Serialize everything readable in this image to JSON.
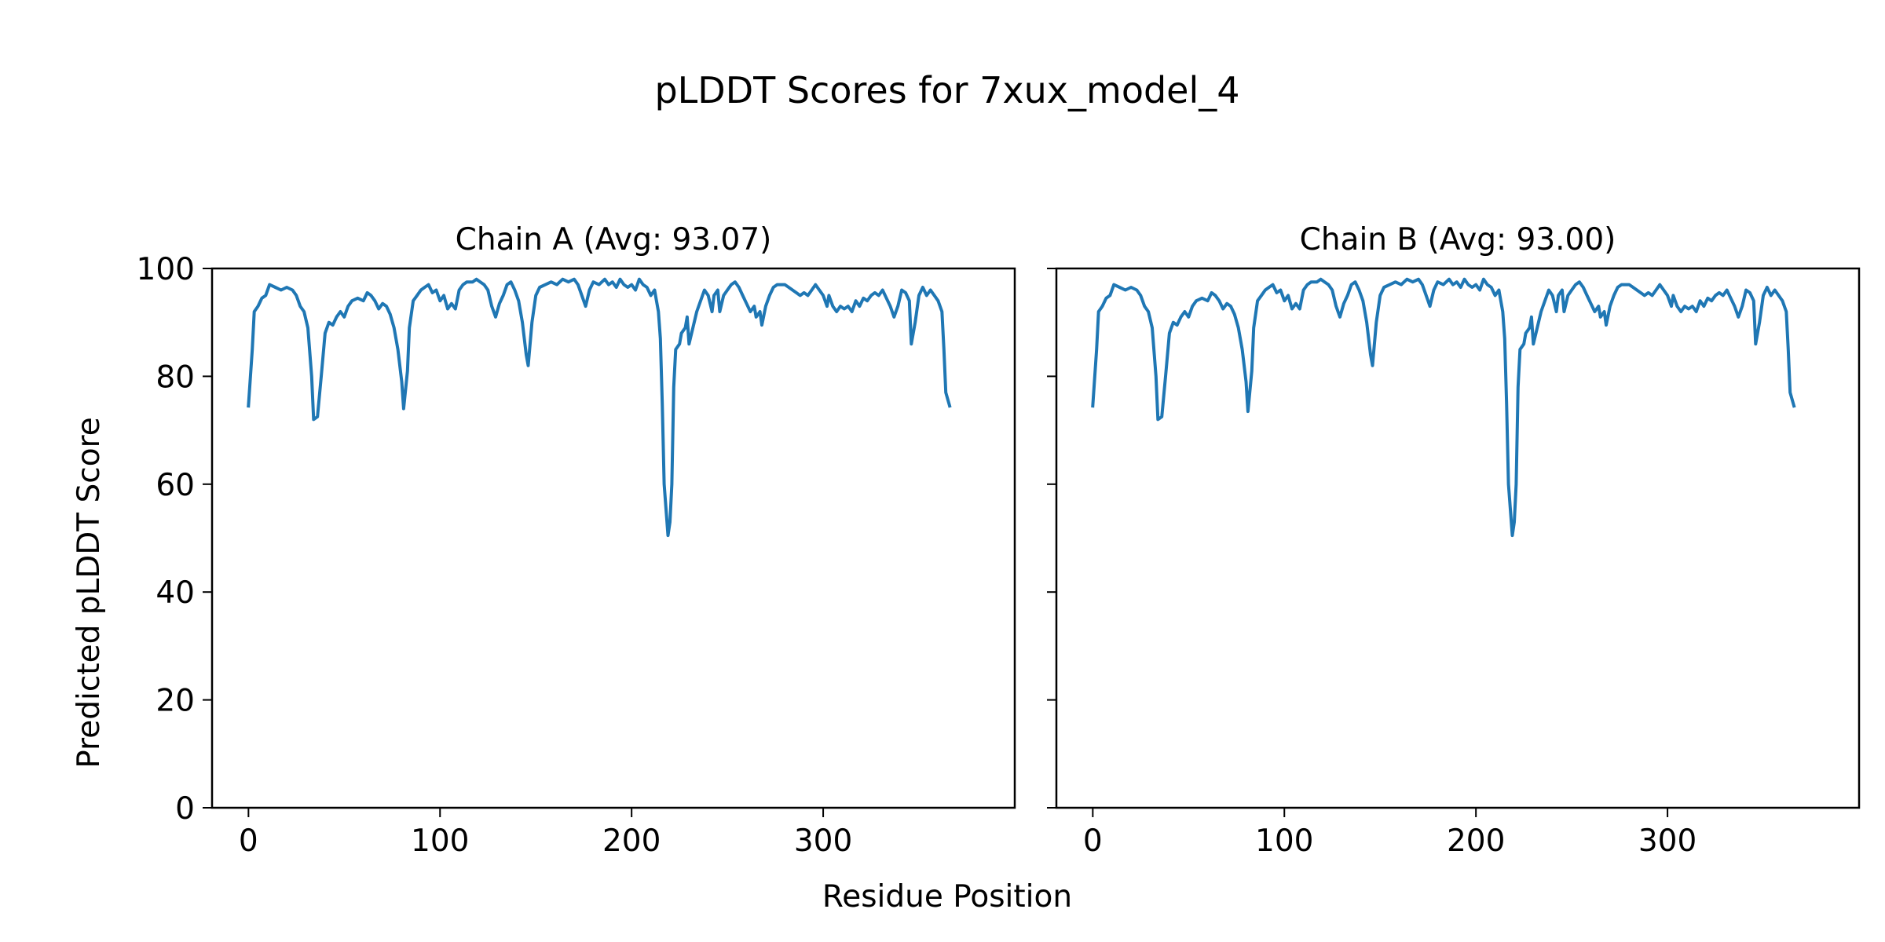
{
  "figure": {
    "title": "pLDDT Scores for 7xux_model_4",
    "xlabel": "Residue Position",
    "ylabel": "Predicted pLDDT Score"
  },
  "chart_data": [
    {
      "type": "line",
      "title": "Chain A (Avg: 93.07)",
      "xlim": [
        -19,
        400
      ],
      "ylim": [
        0,
        100
      ],
      "xticks": [
        0,
        100,
        200,
        300
      ],
      "yticks": [
        0,
        20,
        40,
        60,
        80,
        100
      ],
      "grid": false,
      "line_color": "#1f77b4",
      "points": [
        [
          0,
          74.5
        ],
        [
          2,
          85
        ],
        [
          3,
          92
        ],
        [
          5,
          93
        ],
        [
          7,
          94.5
        ],
        [
          9,
          95
        ],
        [
          11,
          97
        ],
        [
          14,
          96.5
        ],
        [
          17,
          96
        ],
        [
          20,
          96.5
        ],
        [
          23,
          96
        ],
        [
          25,
          95
        ],
        [
          27,
          93
        ],
        [
          29,
          92
        ],
        [
          31,
          89
        ],
        [
          33,
          80
        ],
        [
          34,
          72
        ],
        [
          36,
          72.5
        ],
        [
          38,
          80
        ],
        [
          40,
          88
        ],
        [
          42,
          90
        ],
        [
          44,
          89.5
        ],
        [
          46,
          91
        ],
        [
          48,
          92
        ],
        [
          50,
          91
        ],
        [
          52,
          93
        ],
        [
          54,
          94
        ],
        [
          57,
          94.5
        ],
        [
          60,
          94
        ],
        [
          62,
          95.5
        ],
        [
          64,
          95
        ],
        [
          66,
          94
        ],
        [
          68,
          92.5
        ],
        [
          70,
          93.5
        ],
        [
          72,
          93
        ],
        [
          74,
          91.5
        ],
        [
          76,
          89
        ],
        [
          78,
          85
        ],
        [
          80,
          79
        ],
        [
          81,
          74
        ],
        [
          83,
          81
        ],
        [
          84,
          89
        ],
        [
          86,
          94
        ],
        [
          88,
          95
        ],
        [
          90,
          96
        ],
        [
          92,
          96.5
        ],
        [
          94,
          97
        ],
        [
          96,
          95.5
        ],
        [
          98,
          96
        ],
        [
          100,
          94
        ],
        [
          102,
          95
        ],
        [
          104,
          92.5
        ],
        [
          106,
          93.5
        ],
        [
          108,
          92.5
        ],
        [
          110,
          96
        ],
        [
          112,
          97
        ],
        [
          114,
          97.5
        ],
        [
          117,
          97.5
        ],
        [
          119,
          98
        ],
        [
          121,
          97.5
        ],
        [
          123,
          97
        ],
        [
          125,
          96
        ],
        [
          127,
          93
        ],
        [
          129,
          91
        ],
        [
          131,
          93.5
        ],
        [
          133,
          95
        ],
        [
          135,
          97
        ],
        [
          137,
          97.5
        ],
        [
          139,
          96
        ],
        [
          141,
          94
        ],
        [
          143,
          90
        ],
        [
          145,
          84
        ],
        [
          146,
          82
        ],
        [
          148,
          90
        ],
        [
          150,
          95
        ],
        [
          152,
          96.5
        ],
        [
          155,
          97
        ],
        [
          158,
          97.5
        ],
        [
          161,
          97
        ],
        [
          164,
          98
        ],
        [
          167,
          97.5
        ],
        [
          170,
          98
        ],
        [
          172,
          97
        ],
        [
          174,
          95
        ],
        [
          176,
          93
        ],
        [
          178,
          96
        ],
        [
          180,
          97.5
        ],
        [
          183,
          97
        ],
        [
          186,
          98
        ],
        [
          188,
          97
        ],
        [
          190,
          97.5
        ],
        [
          192,
          96.5
        ],
        [
          194,
          98
        ],
        [
          196,
          97
        ],
        [
          198,
          96.5
        ],
        [
          200,
          97
        ],
        [
          202,
          96
        ],
        [
          204,
          98
        ],
        [
          206,
          97
        ],
        [
          208,
          96.5
        ],
        [
          210,
          95
        ],
        [
          212,
          96
        ],
        [
          214,
          92
        ],
        [
          215,
          87
        ],
        [
          216,
          75
        ],
        [
          217,
          60
        ],
        [
          219,
          50.5
        ],
        [
          220,
          53
        ],
        [
          221,
          60
        ],
        [
          222,
          78
        ],
        [
          223,
          85
        ],
        [
          225,
          86
        ],
        [
          226,
          88
        ],
        [
          228,
          89
        ],
        [
          229,
          91
        ],
        [
          230,
          86
        ],
        [
          232,
          89
        ],
        [
          234,
          92
        ],
        [
          236,
          94
        ],
        [
          238,
          96
        ],
        [
          240,
          95
        ],
        [
          242,
          92
        ],
        [
          243,
          95
        ],
        [
          245,
          96
        ],
        [
          246,
          92
        ],
        [
          248,
          95
        ],
        [
          250,
          96
        ],
        [
          252,
          97
        ],
        [
          254,
          97.5
        ],
        [
          256,
          96.5
        ],
        [
          258,
          95
        ],
        [
          260,
          93.5
        ],
        [
          262,
          92
        ],
        [
          264,
          93
        ],
        [
          265,
          91
        ],
        [
          267,
          92
        ],
        [
          268,
          89.5
        ],
        [
          270,
          93
        ],
        [
          272,
          95
        ],
        [
          274,
          96.5
        ],
        [
          276,
          97
        ],
        [
          278,
          97
        ],
        [
          280,
          97
        ],
        [
          282,
          96.5
        ],
        [
          284,
          96
        ],
        [
          286,
          95.5
        ],
        [
          288,
          95
        ],
        [
          290,
          95.5
        ],
        [
          292,
          95
        ],
        [
          294,
          96
        ],
        [
          296,
          97
        ],
        [
          298,
          96
        ],
        [
          300,
          95
        ],
        [
          302,
          93
        ],
        [
          303,
          95
        ],
        [
          305,
          93
        ],
        [
          307,
          92
        ],
        [
          309,
          93
        ],
        [
          311,
          92.5
        ],
        [
          313,
          93
        ],
        [
          315,
          92
        ],
        [
          317,
          94
        ],
        [
          319,
          93
        ],
        [
          321,
          94.5
        ],
        [
          323,
          94
        ],
        [
          325,
          95
        ],
        [
          327,
          95.5
        ],
        [
          329,
          95
        ],
        [
          331,
          96
        ],
        [
          333,
          94.5
        ],
        [
          335,
          93
        ],
        [
          337,
          91
        ],
        [
          339,
          93
        ],
        [
          341,
          96
        ],
        [
          343,
          95.5
        ],
        [
          345,
          94
        ],
        [
          346,
          86
        ],
        [
          348,
          90
        ],
        [
          350,
          95
        ],
        [
          352,
          96.5
        ],
        [
          354,
          95
        ],
        [
          356,
          96
        ],
        [
          358,
          95
        ],
        [
          360,
          94
        ],
        [
          362,
          92
        ],
        [
          363,
          85
        ],
        [
          364,
          77
        ],
        [
          366,
          74.5
        ]
      ]
    },
    {
      "type": "line",
      "title": "Chain B (Avg: 93.00)",
      "xlim": [
        -19,
        400
      ],
      "ylim": [
        0,
        100
      ],
      "xticks": [
        0,
        100,
        200,
        300
      ],
      "yticks": [
        0,
        20,
        40,
        60,
        80,
        100
      ],
      "grid": false,
      "line_color": "#1f77b4",
      "points": [
        [
          0,
          74.5
        ],
        [
          2,
          85
        ],
        [
          3,
          92
        ],
        [
          5,
          93
        ],
        [
          7,
          94.5
        ],
        [
          9,
          95
        ],
        [
          11,
          97
        ],
        [
          14,
          96.5
        ],
        [
          17,
          96
        ],
        [
          20,
          96.5
        ],
        [
          23,
          96
        ],
        [
          25,
          95
        ],
        [
          27,
          93
        ],
        [
          29,
          92
        ],
        [
          31,
          89
        ],
        [
          33,
          80
        ],
        [
          34,
          72
        ],
        [
          36,
          72.5
        ],
        [
          38,
          80
        ],
        [
          40,
          88
        ],
        [
          42,
          90
        ],
        [
          44,
          89.5
        ],
        [
          46,
          91
        ],
        [
          48,
          92
        ],
        [
          50,
          91
        ],
        [
          52,
          93
        ],
        [
          54,
          94
        ],
        [
          57,
          94.5
        ],
        [
          60,
          94
        ],
        [
          62,
          95.5
        ],
        [
          64,
          95
        ],
        [
          66,
          94
        ],
        [
          68,
          92.5
        ],
        [
          70,
          93.5
        ],
        [
          72,
          93
        ],
        [
          74,
          91.5
        ],
        [
          76,
          89
        ],
        [
          78,
          85
        ],
        [
          80,
          79
        ],
        [
          81,
          73.5
        ],
        [
          83,
          81
        ],
        [
          84,
          89
        ],
        [
          86,
          94
        ],
        [
          88,
          95
        ],
        [
          90,
          96
        ],
        [
          92,
          96.5
        ],
        [
          94,
          97
        ],
        [
          96,
          95.5
        ],
        [
          98,
          96
        ],
        [
          100,
          94
        ],
        [
          102,
          95
        ],
        [
          104,
          92.5
        ],
        [
          106,
          93.5
        ],
        [
          108,
          92.5
        ],
        [
          110,
          96
        ],
        [
          112,
          97
        ],
        [
          114,
          97.5
        ],
        [
          117,
          97.5
        ],
        [
          119,
          98
        ],
        [
          121,
          97.5
        ],
        [
          123,
          97
        ],
        [
          125,
          96
        ],
        [
          127,
          93
        ],
        [
          129,
          91
        ],
        [
          131,
          93.5
        ],
        [
          133,
          95
        ],
        [
          135,
          97
        ],
        [
          137,
          97.5
        ],
        [
          139,
          96
        ],
        [
          141,
          94
        ],
        [
          143,
          90
        ],
        [
          145,
          84
        ],
        [
          146,
          82
        ],
        [
          148,
          90
        ],
        [
          150,
          95
        ],
        [
          152,
          96.5
        ],
        [
          155,
          97
        ],
        [
          158,
          97.5
        ],
        [
          161,
          97
        ],
        [
          164,
          98
        ],
        [
          167,
          97.5
        ],
        [
          170,
          98
        ],
        [
          172,
          97
        ],
        [
          174,
          95
        ],
        [
          176,
          93
        ],
        [
          178,
          96
        ],
        [
          180,
          97.5
        ],
        [
          183,
          97
        ],
        [
          186,
          98
        ],
        [
          188,
          97
        ],
        [
          190,
          97.5
        ],
        [
          192,
          96.5
        ],
        [
          194,
          98
        ],
        [
          196,
          97
        ],
        [
          198,
          96.5
        ],
        [
          200,
          97
        ],
        [
          202,
          96
        ],
        [
          204,
          98
        ],
        [
          206,
          97
        ],
        [
          208,
          96.5
        ],
        [
          210,
          95
        ],
        [
          212,
          96
        ],
        [
          214,
          92
        ],
        [
          215,
          87
        ],
        [
          216,
          75
        ],
        [
          217,
          60
        ],
        [
          219,
          50.5
        ],
        [
          220,
          53
        ],
        [
          221,
          60
        ],
        [
          222,
          78
        ],
        [
          223,
          85
        ],
        [
          225,
          86
        ],
        [
          226,
          88
        ],
        [
          228,
          89
        ],
        [
          229,
          91
        ],
        [
          230,
          86
        ],
        [
          232,
          89
        ],
        [
          234,
          92
        ],
        [
          236,
          94
        ],
        [
          238,
          96
        ],
        [
          240,
          95
        ],
        [
          242,
          92
        ],
        [
          243,
          95
        ],
        [
          245,
          96
        ],
        [
          246,
          92
        ],
        [
          248,
          95
        ],
        [
          250,
          96
        ],
        [
          252,
          97
        ],
        [
          254,
          97.5
        ],
        [
          256,
          96.5
        ],
        [
          258,
          95
        ],
        [
          260,
          93.5
        ],
        [
          262,
          92
        ],
        [
          264,
          93
        ],
        [
          265,
          91
        ],
        [
          267,
          92
        ],
        [
          268,
          89.5
        ],
        [
          270,
          93
        ],
        [
          272,
          95
        ],
        [
          274,
          96.5
        ],
        [
          276,
          97
        ],
        [
          278,
          97
        ],
        [
          280,
          97
        ],
        [
          282,
          96.5
        ],
        [
          284,
          96
        ],
        [
          286,
          95.5
        ],
        [
          288,
          95
        ],
        [
          290,
          95.5
        ],
        [
          292,
          95
        ],
        [
          294,
          96
        ],
        [
          296,
          97
        ],
        [
          298,
          96
        ],
        [
          300,
          95
        ],
        [
          302,
          93
        ],
        [
          303,
          95
        ],
        [
          305,
          93
        ],
        [
          307,
          92
        ],
        [
          309,
          93
        ],
        [
          311,
          92.5
        ],
        [
          313,
          93
        ],
        [
          315,
          92
        ],
        [
          317,
          94
        ],
        [
          319,
          93
        ],
        [
          321,
          94.5
        ],
        [
          323,
          94
        ],
        [
          325,
          95
        ],
        [
          327,
          95.5
        ],
        [
          329,
          95
        ],
        [
          331,
          96
        ],
        [
          333,
          94.5
        ],
        [
          335,
          93
        ],
        [
          337,
          91
        ],
        [
          339,
          93
        ],
        [
          341,
          96
        ],
        [
          343,
          95.5
        ],
        [
          345,
          94
        ],
        [
          346,
          86
        ],
        [
          348,
          90
        ],
        [
          350,
          95
        ],
        [
          352,
          96.5
        ],
        [
          354,
          95
        ],
        [
          356,
          96
        ],
        [
          358,
          95
        ],
        [
          360,
          94
        ],
        [
          362,
          92
        ],
        [
          363,
          85
        ],
        [
          364,
          77
        ],
        [
          366,
          74.5
        ]
      ]
    }
  ]
}
